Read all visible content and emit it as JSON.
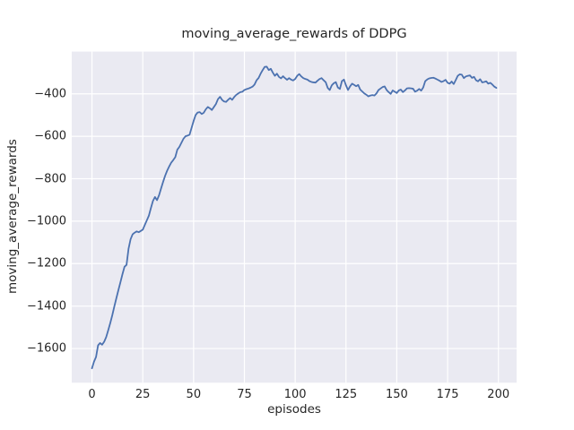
{
  "chart_data": {
    "type": "line",
    "title": "moving_average_rewards of DDPG",
    "xlabel": "episodes",
    "ylabel": "moving_average_rewards",
    "legend": null,
    "grid": true,
    "style": "seaborn-darkgrid",
    "xlim": [
      -9.95,
      208.95
    ],
    "ylim": [
      -1761,
      -201
    ],
    "xticks": {
      "values": [
        0,
        25,
        50,
        75,
        100,
        125,
        150,
        175,
        200
      ],
      "labels": [
        "0",
        "25",
        "50",
        "75",
        "100",
        "125",
        "150",
        "175",
        "200"
      ]
    },
    "yticks": {
      "values": [
        -400,
        -600,
        -800,
        -1000,
        -1200,
        -1400,
        -1600
      ],
      "labels": [
        "−400",
        "−600",
        "−800",
        "−1000",
        "−1200",
        "−1400",
        "−1600"
      ]
    },
    "colors": {
      "line": "#4c72b0",
      "axes_background": "#eaeaf2",
      "gridline": "#ffffff",
      "text": "#262626",
      "figure_background": "#ffffff"
    },
    "series": [
      {
        "name": "moving_average_rewards",
        "points": [
          [
            0,
            -1693
          ],
          [
            1,
            -1662
          ],
          [
            2,
            -1640
          ],
          [
            3,
            -1585
          ],
          [
            4,
            -1574
          ],
          [
            5,
            -1582
          ],
          [
            6,
            -1568
          ],
          [
            7,
            -1546
          ],
          [
            8,
            -1514
          ],
          [
            9,
            -1480
          ],
          [
            10,
            -1443
          ],
          [
            11,
            -1402
          ],
          [
            12,
            -1363
          ],
          [
            13,
            -1325
          ],
          [
            14,
            -1288
          ],
          [
            15,
            -1250
          ],
          [
            16,
            -1215
          ],
          [
            17,
            -1206
          ],
          [
            18,
            -1130
          ],
          [
            19,
            -1085
          ],
          [
            20,
            -1062
          ],
          [
            21,
            -1054
          ],
          [
            22,
            -1048
          ],
          [
            23,
            -1052
          ],
          [
            24,
            -1046
          ],
          [
            25,
            -1040
          ],
          [
            26,
            -1018
          ],
          [
            27,
            -996
          ],
          [
            28,
            -974
          ],
          [
            29,
            -938
          ],
          [
            30,
            -905
          ],
          [
            31,
            -886
          ],
          [
            32,
            -901
          ],
          [
            33,
            -878
          ],
          [
            34,
            -846
          ],
          [
            35,
            -815
          ],
          [
            36,
            -786
          ],
          [
            37,
            -762
          ],
          [
            38,
            -742
          ],
          [
            39,
            -724
          ],
          [
            40,
            -712
          ],
          [
            41,
            -698
          ],
          [
            42,
            -663
          ],
          [
            43,
            -650
          ],
          [
            44,
            -631
          ],
          [
            45,
            -612
          ],
          [
            46,
            -600
          ],
          [
            47,
            -597
          ],
          [
            48,
            -593
          ],
          [
            49,
            -561
          ],
          [
            50,
            -528
          ],
          [
            51,
            -500
          ],
          [
            52,
            -488
          ],
          [
            53,
            -486
          ],
          [
            54,
            -495
          ],
          [
            55,
            -489
          ],
          [
            56,
            -473
          ],
          [
            57,
            -462
          ],
          [
            58,
            -468
          ],
          [
            59,
            -476
          ],
          [
            60,
            -462
          ],
          [
            61,
            -448
          ],
          [
            62,
            -425
          ],
          [
            63,
            -414
          ],
          [
            64,
            -428
          ],
          [
            65,
            -436
          ],
          [
            66,
            -438
          ],
          [
            67,
            -428
          ],
          [
            68,
            -420
          ],
          [
            69,
            -428
          ],
          [
            70,
            -415
          ],
          [
            71,
            -405
          ],
          [
            72,
            -398
          ],
          [
            73,
            -392
          ],
          [
            74,
            -390
          ],
          [
            75,
            -382
          ],
          [
            76,
            -378
          ],
          [
            77,
            -375
          ],
          [
            78,
            -371
          ],
          [
            79,
            -366
          ],
          [
            80,
            -356
          ],
          [
            81,
            -336
          ],
          [
            82,
            -325
          ],
          [
            83,
            -305
          ],
          [
            84,
            -288
          ],
          [
            85,
            -273
          ],
          [
            86,
            -272
          ],
          [
            87,
            -288
          ],
          [
            88,
            -282
          ],
          [
            89,
            -300
          ],
          [
            90,
            -315
          ],
          [
            91,
            -305
          ],
          [
            92,
            -320
          ],
          [
            93,
            -327
          ],
          [
            94,
            -317
          ],
          [
            95,
            -326
          ],
          [
            96,
            -334
          ],
          [
            97,
            -326
          ],
          [
            98,
            -333
          ],
          [
            99,
            -337
          ],
          [
            100,
            -330
          ],
          [
            101,
            -315
          ],
          [
            102,
            -307
          ],
          [
            103,
            -318
          ],
          [
            104,
            -326
          ],
          [
            105,
            -330
          ],
          [
            106,
            -333
          ],
          [
            107,
            -340
          ],
          [
            108,
            -344
          ],
          [
            109,
            -346
          ],
          [
            110,
            -347
          ],
          [
            111,
            -338
          ],
          [
            112,
            -330
          ],
          [
            113,
            -326
          ],
          [
            114,
            -336
          ],
          [
            115,
            -345
          ],
          [
            116,
            -372
          ],
          [
            117,
            -382
          ],
          [
            118,
            -360
          ],
          [
            119,
            -350
          ],
          [
            120,
            -345
          ],
          [
            121,
            -370
          ],
          [
            122,
            -377
          ],
          [
            123,
            -340
          ],
          [
            124,
            -333
          ],
          [
            125,
            -360
          ],
          [
            126,
            -382
          ],
          [
            127,
            -365
          ],
          [
            128,
            -352
          ],
          [
            129,
            -358
          ],
          [
            130,
            -364
          ],
          [
            131,
            -358
          ],
          [
            132,
            -380
          ],
          [
            133,
            -389
          ],
          [
            134,
            -398
          ],
          [
            135,
            -404
          ],
          [
            136,
            -412
          ],
          [
            137,
            -408
          ],
          [
            138,
            -406
          ],
          [
            139,
            -408
          ],
          [
            140,
            -398
          ],
          [
            141,
            -382
          ],
          [
            142,
            -375
          ],
          [
            143,
            -368
          ],
          [
            144,
            -365
          ],
          [
            145,
            -382
          ],
          [
            146,
            -392
          ],
          [
            147,
            -400
          ],
          [
            148,
            -384
          ],
          [
            149,
            -390
          ],
          [
            150,
            -396
          ],
          [
            151,
            -384
          ],
          [
            152,
            -380
          ],
          [
            153,
            -392
          ],
          [
            154,
            -384
          ],
          [
            155,
            -374
          ],
          [
            156,
            -373
          ],
          [
            157,
            -374
          ],
          [
            158,
            -376
          ],
          [
            159,
            -390
          ],
          [
            160,
            -385
          ],
          [
            161,
            -377
          ],
          [
            162,
            -385
          ],
          [
            163,
            -370
          ],
          [
            164,
            -340
          ],
          [
            165,
            -332
          ],
          [
            166,
            -327
          ],
          [
            167,
            -325
          ],
          [
            168,
            -324
          ],
          [
            169,
            -328
          ],
          [
            170,
            -333
          ],
          [
            171,
            -338
          ],
          [
            172,
            -344
          ],
          [
            173,
            -340
          ],
          [
            174,
            -334
          ],
          [
            175,
            -348
          ],
          [
            176,
            -352
          ],
          [
            177,
            -342
          ],
          [
            178,
            -354
          ],
          [
            179,
            -335
          ],
          [
            180,
            -315
          ],
          [
            181,
            -308
          ],
          [
            182,
            -310
          ],
          [
            183,
            -326
          ],
          [
            184,
            -318
          ],
          [
            185,
            -315
          ],
          [
            186,
            -313
          ],
          [
            187,
            -325
          ],
          [
            188,
            -320
          ],
          [
            189,
            -336
          ],
          [
            190,
            -341
          ],
          [
            191,
            -331
          ],
          [
            192,
            -346
          ],
          [
            193,
            -344
          ],
          [
            194,
            -341
          ],
          [
            195,
            -352
          ],
          [
            196,
            -348
          ],
          [
            197,
            -356
          ],
          [
            198,
            -366
          ],
          [
            199,
            -372
          ]
        ]
      }
    ]
  }
}
